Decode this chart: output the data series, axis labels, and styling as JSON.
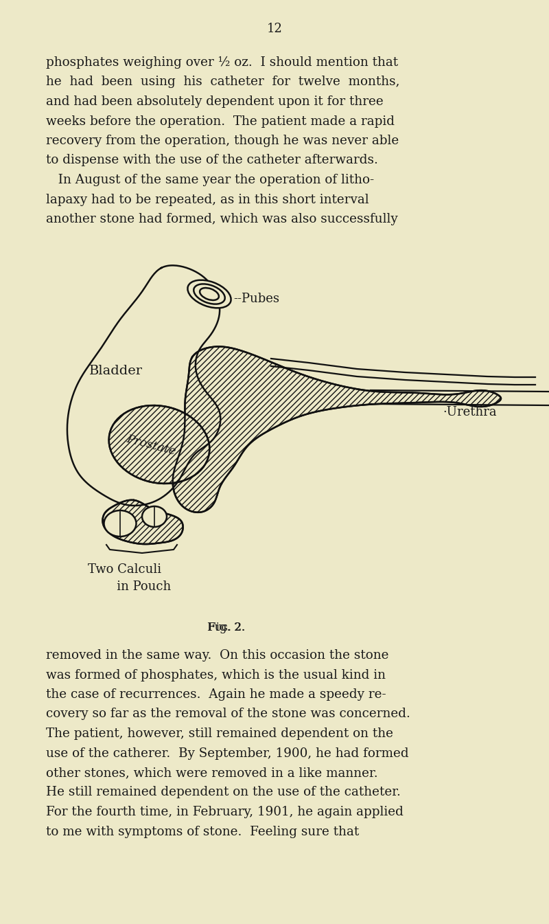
{
  "bg_color": "#ede9c8",
  "text_color": "#1a1a1a",
  "page_number": "12",
  "para1_lines": [
    "phosphates weighing over ½ oz.  I should mention that",
    "he  had  been  using  his  catheter  for  twelve  months,",
    "and had been absolutely dependent upon it for three",
    "weeks before the operation.  The patient made a rapid",
    "recovery from the operation, though he was never able",
    "to dispense with the use of the catheter afterwards.",
    "   In August of the same year the operation of litho-",
    "lapaxy had to be repeated, as in this short interval",
    "another stone had formed, which was also successfully"
  ],
  "para2_lines": [
    "removed in the same way.  On this occasion the stone",
    "was formed of phosphates, which is the usual kind in",
    "the case of recurrences.  Again he made a speedy re-",
    "covery so far as the removal of the stone was concerned.",
    "The patient, however, still remained dependent on the",
    "use of the catherer.  By September, 1900, he had formed",
    "other stones, which were removed in a like manner.",
    "He still remained dependent on the use of the catheter.",
    "For the fourth time, in February, 1901, he again applied",
    "to me with symptoms of stone.  Feeling sure that"
  ],
  "fig_caption": "Fig. 2.",
  "label_bladder": "Bladder",
  "label_pubes": "--Pubes",
  "label_prostate": "Prostate",
  "label_urethra": "·Urethra",
  "label_calculi_line1": "Two Calculi",
  "label_calculi_line2": "   in Pouch"
}
